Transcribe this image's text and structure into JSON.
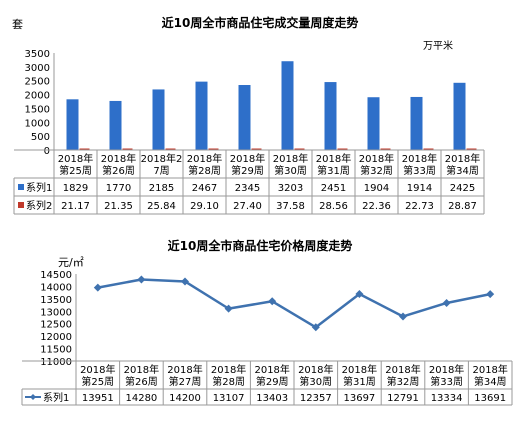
{
  "chart_data": [
    {
      "type": "bar",
      "title": "近10周全市商品住宅成交量周度走势",
      "ylabel": "套",
      "y2label": "万平米",
      "ylim": [
        0,
        3500
      ],
      "yticks": [
        0,
        500,
        1000,
        1500,
        2000,
        2500,
        3000,
        3500
      ],
      "grid": false,
      "categories": [
        [
          "2018年",
          "第25周"
        ],
        [
          "2018年",
          "第26周"
        ],
        [
          "2018年2",
          "7周"
        ],
        [
          "2018年",
          "第28周"
        ],
        [
          "2018年",
          "第29周"
        ],
        [
          "2018年",
          "第30周"
        ],
        [
          "2018年",
          "第31周"
        ],
        [
          "2018年",
          "第32周"
        ],
        [
          "2018年",
          "第33周"
        ],
        [
          "2018年",
          "第34周"
        ]
      ],
      "series": [
        {
          "name": "系列1",
          "color": "#2e6fc9",
          "values": [
            1829,
            1770,
            2185,
            2467,
            2345,
            3203,
            2451,
            1904,
            1914,
            2425
          ],
          "labels": [
            "1829",
            "1770",
            "2185",
            "2467",
            "2345",
            "3203",
            "2451",
            "1904",
            "1914",
            "2425"
          ]
        },
        {
          "name": "系列2",
          "color": "#c0392b",
          "values": [
            21.17,
            21.35,
            25.84,
            29.1,
            27.4,
            37.58,
            28.56,
            22.36,
            22.73,
            28.87
          ],
          "labels": [
            "21.17",
            "21.35",
            "25.84",
            "29.10",
            "27.40",
            "37.58",
            "28.56",
            "22.36",
            "22.73",
            "28.87"
          ]
        }
      ]
    },
    {
      "type": "line",
      "title": "近10周全市商品住宅价格周度走势",
      "ylabel": "元/㎡",
      "ylim": [
        11000,
        14500
      ],
      "yticks": [
        11000,
        11500,
        12000,
        12500,
        13000,
        13500,
        14000,
        14500
      ],
      "grid": false,
      "categories": [
        [
          "2018年",
          "第25周"
        ],
        [
          "2018年",
          "第26周"
        ],
        [
          "2018年",
          "第27周"
        ],
        [
          "2018年",
          "第28周"
        ],
        [
          "2018年",
          "第29周"
        ],
        [
          "2018年",
          "第30周"
        ],
        [
          "2018年",
          "第31周"
        ],
        [
          "2018年",
          "第32周"
        ],
        [
          "2018年",
          "第33周"
        ],
        [
          "2018年",
          "第34周"
        ]
      ],
      "series": [
        {
          "name": "系列1",
          "color": "#3f72af",
          "values": [
            13951,
            14280,
            14200,
            13107,
            13403,
            12357,
            13697,
            12791,
            13334,
            13691
          ],
          "labels": [
            "13951",
            "14280",
            "14200",
            "13107",
            "13403",
            "12357",
            "13697",
            "12791",
            "13334",
            "13691"
          ]
        }
      ]
    }
  ]
}
